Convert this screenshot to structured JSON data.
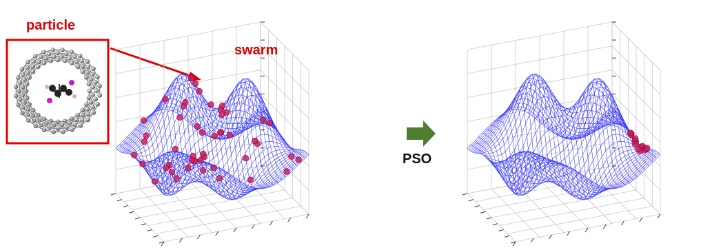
{
  "labels": {
    "particle": "particle",
    "swarm": "swarm",
    "pso": "PSO"
  },
  "colors": {
    "highlight": "#e00000",
    "mesh": "#1c1cff",
    "grid": "#c8c8c8",
    "arrow": "#4f7f2e",
    "swarm_points": "#b0003a"
  },
  "icons": {
    "molecule": "nanotube-with-molecule",
    "process_arrow": "right-arrow"
  }
}
